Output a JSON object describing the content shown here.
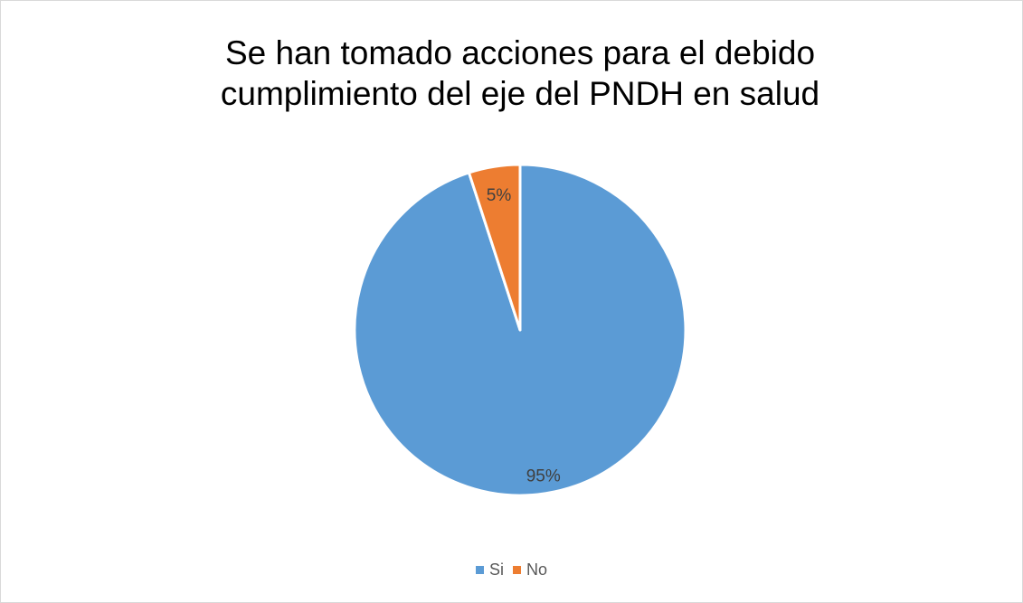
{
  "chart_data": {
    "type": "pie",
    "title": "Se han tomado acciones para el debido cumplimiento del eje del PNDH en salud",
    "categories": [
      "Si",
      "No"
    ],
    "values": [
      95,
      5
    ],
    "data_labels": [
      "95%",
      "5%"
    ],
    "colors": [
      "#5b9bd5",
      "#ed7d31"
    ],
    "legend_position": "bottom"
  }
}
